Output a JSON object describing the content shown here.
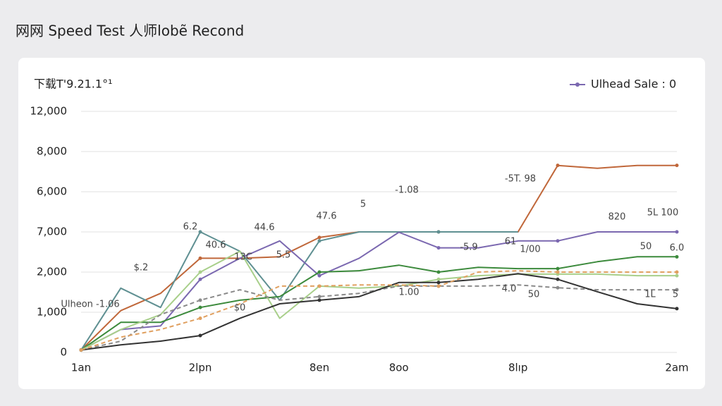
{
  "chart_data": {
    "type": "line",
    "title": "网网 Speed Test 人师lobẽ Recond",
    "y_label": "下载T'9.21.1°¹",
    "categories": [
      "1an",
      null,
      null,
      "2lpn",
      null,
      null,
      "8en",
      null,
      "8oo",
      null,
      null,
      "8lıp",
      null,
      null,
      null,
      "2am"
    ],
    "ylim": [
      0,
      12000
    ],
    "yticks": [
      0,
      {
        "value": 1000,
        "label": "1,000"
      },
      {
        "value": 2000,
        "label": "2,000"
      },
      {
        "value": 7000,
        "label": "7,000"
      },
      {
        "value": 6000,
        "label": "6,000"
      },
      {
        "value": 8000,
        "label": "8,000"
      },
      {
        "value": 12000,
        "label": "12,000"
      }
    ],
    "grid": true,
    "legend": "top-right",
    "series": [
      {
        "color": "#c0673a",
        "dash": false,
        "values": [
          60,
          1040,
          1470,
          3720,
          3720,
          3900,
          6310,
          7000,
          7000,
          7000,
          7000,
          7000,
          7310,
          7170,
          7310,
          7310
        ]
      },
      {
        "color": "#5f9092",
        "dash": false,
        "values": [
          60,
          1600,
          1120,
          7000,
          4590,
          1300,
          5880,
          7000,
          7000,
          7000,
          7000,
          7000,
          null,
          null,
          null,
          null
        ]
      },
      {
        "name": "Ulhead Sale : 0",
        "color": "#7b68b0",
        "dash": false,
        "values": [
          60,
          570,
          660,
          1820,
          3720,
          5880,
          1910,
          3720,
          6960,
          5020,
          5020,
          5880,
          5880,
          7000,
          7000,
          7000
        ]
      },
      {
        "color": "#3c8a3c",
        "dash": false,
        "values": [
          60,
          750,
          750,
          1120,
          1300,
          1390,
          2000,
          2170,
          2860,
          2000,
          2600,
          2430,
          2430,
          3290,
          3900,
          3900
        ]
      },
      {
        "color": "#a8cf8a",
        "dash": false,
        "values": [
          60,
          570,
          940,
          2000,
          4590,
          850,
          1650,
          1600,
          1650,
          1820,
          1910,
          1950,
          1950,
          1950,
          1910,
          1910
        ]
      },
      {
        "color": "#8a8a8a",
        "dash": true,
        "values": [
          60,
          280,
          940,
          1300,
          1560,
          1300,
          1390,
          1470,
          1650,
          1650,
          1650,
          1680,
          1610,
          1560,
          1560,
          1560
        ]
      },
      {
        "color": "#333333",
        "dash": false,
        "values": [
          60,
          190,
          280,
          420,
          850,
          1210,
          1300,
          1390,
          1740,
          1740,
          1820,
          1960,
          1820,
          1510,
          1210,
          1090
        ]
      },
      {
        "color": "#e0a060",
        "dash": true,
        "values": [
          60,
          380,
          570,
          850,
          1210,
          1650,
          1650,
          1680,
          1680,
          1650,
          2000,
          2170,
          2000,
          2000,
          2000,
          2000
        ]
      }
    ],
    "annotations": [
      "Ulheon -1.06",
      "$.2",
      "6.2",
      "40.6",
      "13C",
      "44.6",
      "$0",
      "5.5",
      "47.6",
      "5",
      "-1.08",
      "-5T. 98",
      "820",
      "5L 100",
      "-5.9",
      "61",
      "1/00",
      "50",
      "6.0",
      "4.0",
      "50",
      "1L",
      "5",
      "1.00"
    ]
  }
}
